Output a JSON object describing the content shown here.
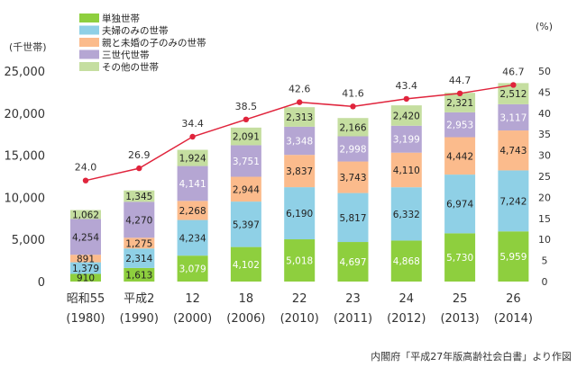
{
  "chart_data": {
    "type": "bar",
    "stacked": true,
    "categories": [
      "昭和55",
      "平成2",
      "12",
      "18",
      "22",
      "23",
      "24",
      "25",
      "26"
    ],
    "category_years": [
      "(1980)",
      "(1990)",
      "(2000)",
      "(2006)",
      "(2010)",
      "(2011)",
      "(2012)",
      "(2013)",
      "(2014)"
    ],
    "y_unit_label": "(千世帯)",
    "y2_unit_label": "(%)",
    "ylim": [
      0,
      25000
    ],
    "y_ticks": [
      "0",
      "5,000",
      "10,000",
      "15,000",
      "20,000",
      "25,000"
    ],
    "y2lim": [
      0,
      50
    ],
    "y2_ticks": [
      "0",
      "5",
      "10",
      "15",
      "20",
      "25",
      "30",
      "35",
      "40",
      "45",
      "50"
    ],
    "series": [
      {
        "name": "単独世帯",
        "color": "#8ecf3e",
        "values": [
          910,
          1613,
          3079,
          4102,
          5018,
          4697,
          4868,
          5730,
          5959
        ],
        "labels": [
          "910",
          "1,613",
          "3,079",
          "4,102",
          "5,018",
          "4,697",
          "4,868",
          "5,730",
          "5,959"
        ]
      },
      {
        "name": "夫婦のみの世帯",
        "color": "#8fd0e6",
        "values": [
          1379,
          2314,
          4234,
          5397,
          6190,
          5817,
          6332,
          6974,
          7242
        ],
        "labels": [
          "1,379",
          "2,314",
          "4,234",
          "5,397",
          "6,190",
          "5,817",
          "6,332",
          "6,974",
          "7,242"
        ]
      },
      {
        "name": "親と未婚の子のみの世帯",
        "color": "#fbbb8c",
        "values": [
          891,
          1275,
          2268,
          2944,
          3837,
          3743,
          4110,
          4442,
          4743
        ],
        "labels": [
          "891",
          "1,275",
          "2,268",
          "2,944",
          "3,837",
          "3,743",
          "4,110",
          "4,442",
          "4,743"
        ]
      },
      {
        "name": "三世代世帯",
        "color": "#b5a6d3",
        "values": [
          4254,
          4270,
          4141,
          3751,
          3348,
          2998,
          3199,
          2953,
          3117
        ],
        "labels": [
          "4,254",
          "4,270",
          "4,141",
          "3,751",
          "3,348",
          "2,998",
          "3,199",
          "2,953",
          "3,117"
        ]
      },
      {
        "name": "その他の世帯",
        "color": "#c5dea0",
        "values": [
          1062,
          1345,
          1924,
          2091,
          2313,
          2166,
          2420,
          2321,
          2512
        ],
        "labels": [
          "1,062",
          "1,345",
          "1,924",
          "2,091",
          "2,313",
          "2,166",
          "2,420",
          "2,321",
          "2,512"
        ]
      }
    ],
    "line": {
      "color": "#e0243c",
      "values": [
        24.0,
        26.9,
        34.4,
        38.5,
        42.6,
        41.6,
        43.4,
        44.7,
        46.7
      ],
      "labels": [
        "24.0",
        "26.9",
        "34.4",
        "38.5",
        "42.6",
        "41.6",
        "43.4",
        "44.7",
        "46.7"
      ]
    },
    "legend_position": "top-left",
    "grid": false,
    "source": "内閣府「平成27年版高齢社会白書」より作図"
  }
}
